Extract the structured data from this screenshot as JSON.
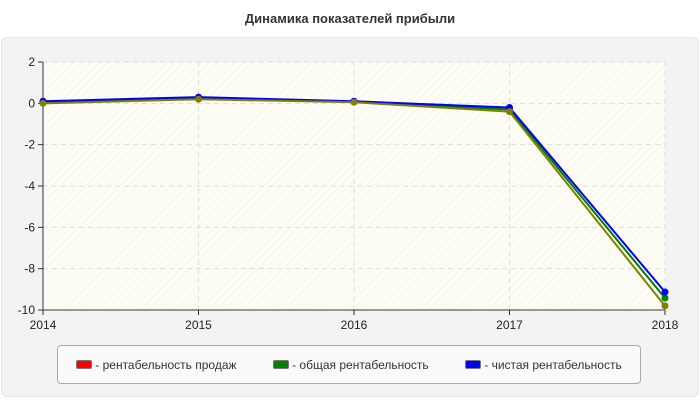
{
  "chart_data": {
    "type": "line",
    "title": "Динамика показателей прибыли",
    "categories": [
      "2014",
      "2015",
      "2016",
      "2017",
      "2018"
    ],
    "ylim": [
      -10,
      2
    ],
    "yticks": [
      "2",
      "0",
      "-2",
      "-4",
      "-6",
      "-8",
      "-10"
    ],
    "grid": true,
    "legend_position": "bottom",
    "series": [
      {
        "name": "- рентабельность продаж",
        "color": "#ff0000",
        "values": [
          0.0,
          0.2,
          0.05,
          -0.4,
          -9.8
        ]
      },
      {
        "name": "- общая рентабельность",
        "color": "#008000",
        "values": [
          0.05,
          0.25,
          0.08,
          -0.3,
          -9.42
        ]
      },
      {
        "name": "- чистая рентабельность",
        "color": "#0000ff",
        "values": [
          0.1,
          0.3,
          0.1,
          -0.2,
          -9.13
        ]
      }
    ]
  }
}
